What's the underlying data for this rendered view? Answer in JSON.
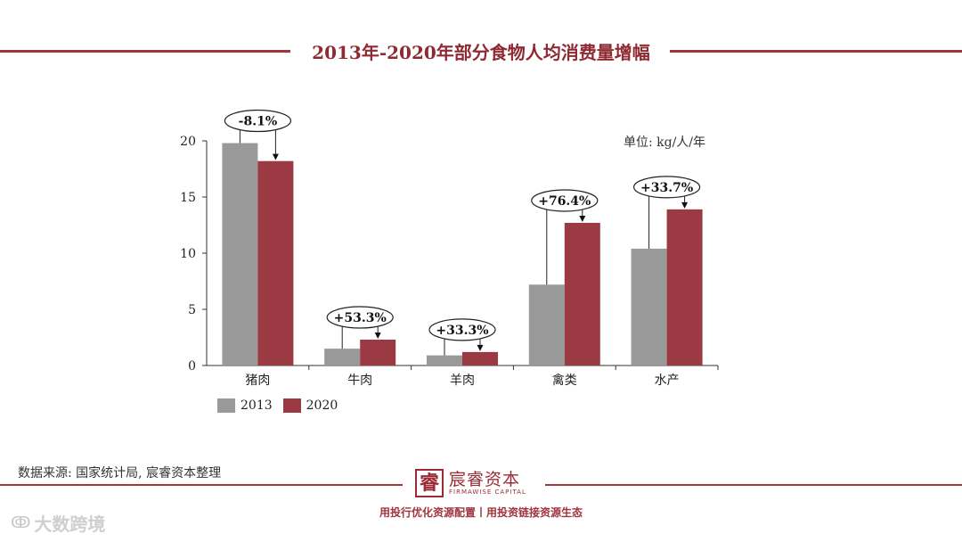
{
  "title": "2013年-2020年部分食物人均消费量增幅",
  "unit_label": "单位: kg/人/年",
  "colors": {
    "series_2013": "#999999",
    "series_2020": "#9b3a43",
    "accent": "#a0353d"
  },
  "chart_data": {
    "type": "bar",
    "categories": [
      "猪肉",
      "牛肉",
      "羊肉",
      "禽类",
      "水产"
    ],
    "series": [
      {
        "name": "2013",
        "values": [
          19.8,
          1.5,
          0.9,
          7.2,
          10.4
        ]
      },
      {
        "name": "2020",
        "values": [
          18.2,
          2.3,
          1.2,
          12.7,
          13.9
        ]
      }
    ],
    "changes": [
      "-8.1%",
      "+53.3%",
      "+33.3%",
      "+76.4%",
      "+33.7%"
    ],
    "ylim": [
      0,
      20
    ],
    "yticks": [
      0,
      5,
      10,
      15,
      20
    ],
    "legend_position": "bottom-left",
    "grid": false
  },
  "source": "数据来源: 国家统计局, 宸睿资本整理",
  "logo": {
    "mark": "睿",
    "name": "宸睿资本",
    "en": "FIRMAWISE CAPITAL"
  },
  "slogan": "用投行优化资源配置丨用投资链接资源生态",
  "watermark": {
    "icon": "ↂ",
    "text": "大数跨境"
  }
}
